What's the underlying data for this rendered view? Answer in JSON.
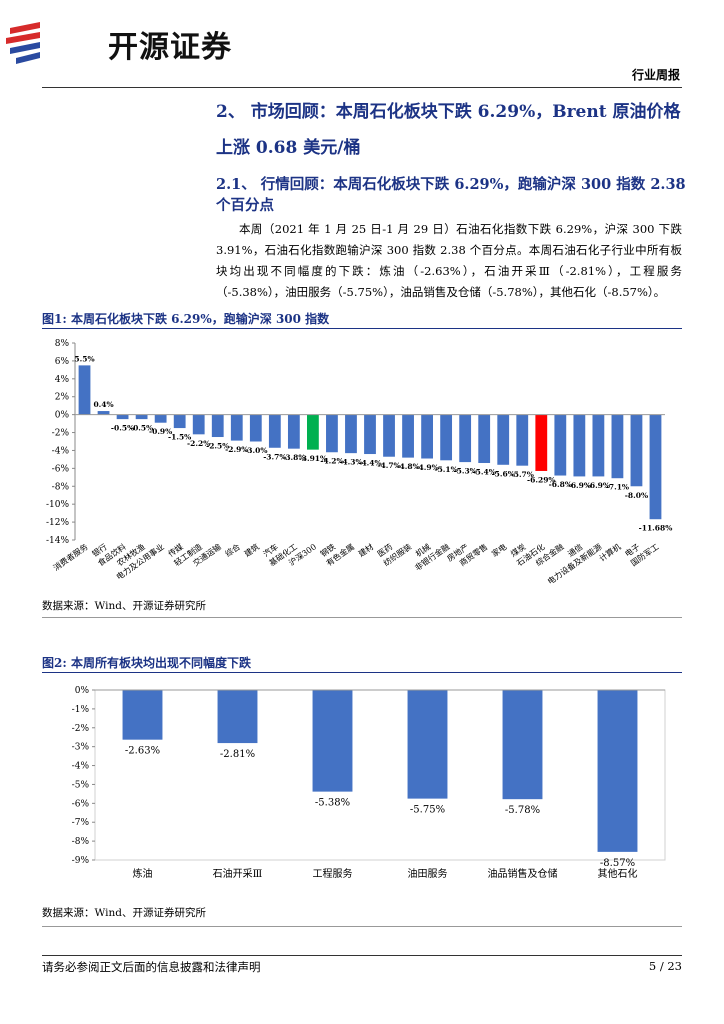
{
  "header": {
    "brand": "开源证券",
    "report_type": "行业周报"
  },
  "heading": "2、 市场回顾：本周石化板块下跌 6.29%，Brent 原油价格上涨 0.68 美元/桶",
  "subheading": "2.1、 行情回顾：本周石化板块下跌 6.29%，跑输沪深 300 指数 2.38 个百分点",
  "paragraph": "本周（2021 年 1 月 25 日-1 月 29 日）石油石化指数下跌 6.29%，沪深 300 下跌 3.91%，石油石化指数跑输沪深 300 指数 2.38 个百分点。本周石油石化子行业中所有板块均出现不同幅度的下跌：炼油（-2.63%），石油开采Ⅲ（-2.81%），工程服务（-5.38%），油田服务（-5.75%），油品销售及仓储（-5.78%），其他石化（-8.57%）。",
  "chart_data": [
    {
      "type": "bar",
      "title": "图1: 本周石化板块下跌 6.29%，跑输沪深 300 指数",
      "source": "数据来源：Wind、开源证券研究所",
      "categories": [
        "消费者服务",
        "银行",
        "食品饮料",
        "农林牧渔",
        "电力及公用事业",
        "传媒",
        "轻工制造",
        "交通运输",
        "综合",
        "建筑",
        "汽车",
        "基础化工",
        "沪深300",
        "钢铁",
        "有色金属",
        "建材",
        "医药",
        "纺织服装",
        "机械",
        "非银行金融",
        "房地产",
        "商贸零售",
        "家电",
        "煤炭",
        "石油石化",
        "综合金融",
        "通信",
        "电力设备及新能源",
        "计算机",
        "电子",
        "国防军工"
      ],
      "values": [
        5.5,
        0.4,
        -0.5,
        -0.5,
        -0.9,
        -1.5,
        -2.2,
        -2.5,
        -2.9,
        -3.0,
        -3.7,
        -3.8,
        -3.91,
        -4.2,
        -4.3,
        -4.4,
        -4.7,
        -4.8,
        -4.9,
        -5.1,
        -5.3,
        -5.4,
        -5.6,
        -5.7,
        -6.29,
        -6.8,
        -6.9,
        -6.9,
        -7.1,
        -8.0,
        -11.68
      ],
      "value_labels": [
        "5.5%",
        "0.4%",
        "-0.5%",
        "-0.5%",
        "-0.9%",
        "-1.5%",
        "-2.2%",
        "-2.5%",
        "-2.9%",
        "-3.0%",
        "-3.7%",
        "-3.8%",
        "-3.91%",
        "-4.2%",
        "-4.3%",
        "-4.4%",
        "-4.7%",
        "-4.8%",
        "-4.9%",
        "-5.1%",
        "-5.3%",
        "-5.4%",
        "-5.6%",
        "-5.7%",
        "-6.29%",
        "-6.8%",
        "-6.9%",
        "-6.9%",
        "-7.1%",
        "-8.0%",
        "-11.68%"
      ],
      "colors": [
        "#4472c4",
        "#4472c4",
        "#4472c4",
        "#4472c4",
        "#4472c4",
        "#4472c4",
        "#4472c4",
        "#4472c4",
        "#4472c4",
        "#4472c4",
        "#4472c4",
        "#4472c4",
        "#00b050",
        "#4472c4",
        "#4472c4",
        "#4472c4",
        "#4472c4",
        "#4472c4",
        "#4472c4",
        "#4472c4",
        "#4472c4",
        "#4472c4",
        "#4472c4",
        "#4472c4",
        "#ff0000",
        "#4472c4",
        "#4472c4",
        "#4472c4",
        "#4472c4",
        "#4472c4",
        "#4472c4"
      ],
      "ylim": [
        -14,
        8
      ],
      "yticks": [
        {
          "value": -14,
          "label": "-14%"
        },
        {
          "value": -12,
          "label": "-12%"
        },
        {
          "value": -10,
          "label": "-10%"
        },
        {
          "value": -8,
          "label": "-8%"
        },
        {
          "value": -6,
          "label": "-6%"
        },
        {
          "value": -4,
          "label": "-4%"
        },
        {
          "value": -2,
          "label": "-2%"
        },
        {
          "value": 0,
          "label": "0%"
        },
        {
          "value": 2,
          "label": "2%"
        },
        {
          "value": 4,
          "label": "4%"
        },
        {
          "value": 6,
          "label": "6%"
        },
        {
          "value": 8,
          "label": "8%"
        }
      ],
      "grid": false
    },
    {
      "type": "bar",
      "title": "图2: 本周所有板块均出现不同幅度下跌",
      "source": "数据来源：Wind、开源证券研究所",
      "categories": [
        "炼油",
        "石油开采Ⅲ",
        "工程服务",
        "油田服务",
        "油品销售及仓储",
        "其他石化"
      ],
      "values": [
        -2.63,
        -2.81,
        -5.38,
        -5.75,
        -5.78,
        -8.57
      ],
      "value_labels": [
        "-2.63%",
        "-2.81%",
        "-5.38%",
        "-5.75%",
        "-5.78%",
        "-8.57%"
      ],
      "color": "#4472c4",
      "ylim": [
        -9,
        0
      ],
      "yticks": [
        {
          "value": -9,
          "label": "-9%"
        },
        {
          "value": -8,
          "label": "-8%"
        },
        {
          "value": -7,
          "label": "-7%"
        },
        {
          "value": -6,
          "label": "-6%"
        },
        {
          "value": -5,
          "label": "-5%"
        },
        {
          "value": -4,
          "label": "-4%"
        },
        {
          "value": -3,
          "label": "-3%"
        },
        {
          "value": -2,
          "label": "-2%"
        },
        {
          "value": -1,
          "label": "-1%"
        },
        {
          "value": 0,
          "label": "0%"
        }
      ],
      "grid": false
    }
  ],
  "footer": {
    "disclaimer": "请务必参阅正文后面的信息披露和法律声明",
    "page": "5 / 23"
  }
}
